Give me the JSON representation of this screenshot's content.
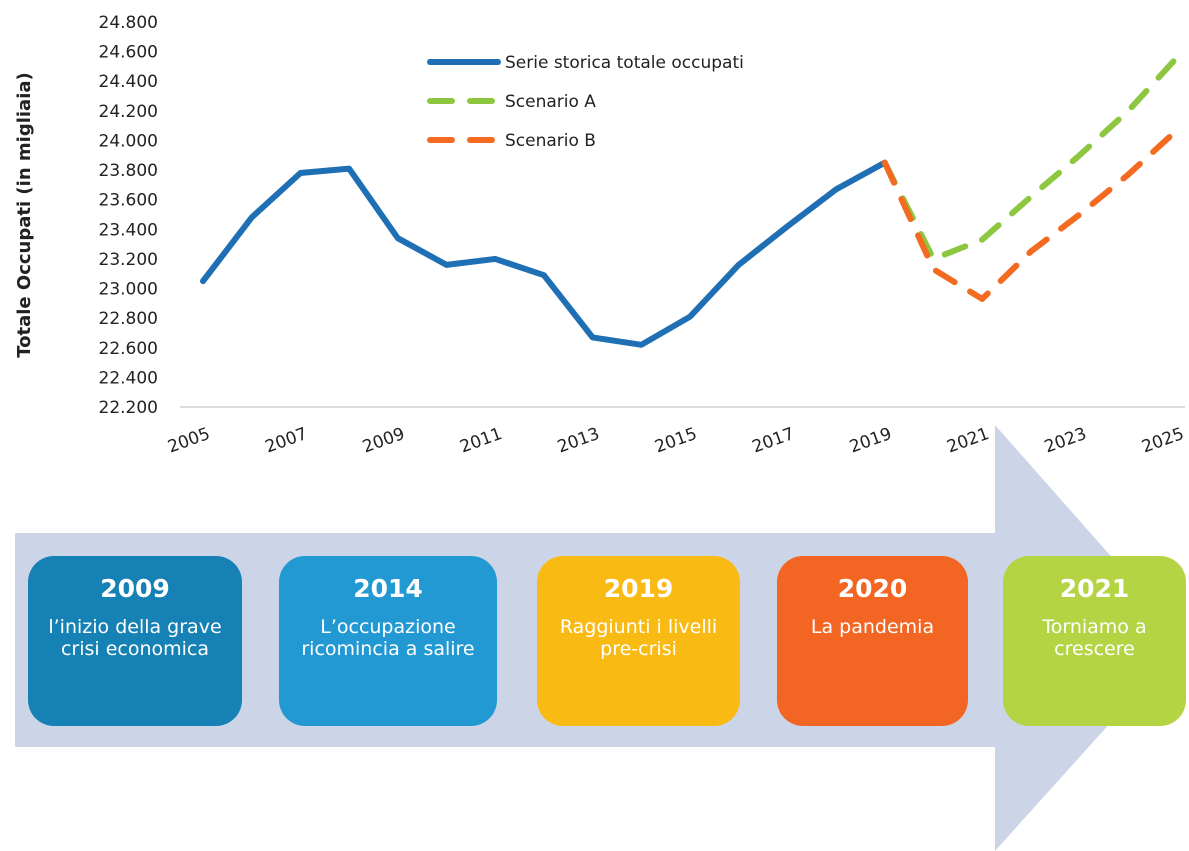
{
  "chart_data": {
    "type": "line",
    "y_label": "Totale Occupati (in migliaia)",
    "x": [
      2005,
      2006,
      2007,
      2008,
      2009,
      2010,
      2011,
      2012,
      2013,
      2014,
      2015,
      2016,
      2017,
      2018,
      2019,
      2020,
      2021,
      2022,
      2023,
      2024,
      2025
    ],
    "series": [
      {
        "name": "Serie storica totale occupati",
        "color": "#1f6fb5",
        "dashed": false,
        "values": [
          23050,
          23480,
          23780,
          23810,
          23340,
          23160,
          23200,
          23090,
          22670,
          22620,
          22810,
          23160,
          23420,
          23670,
          23850,
          null,
          null,
          null,
          null,
          null,
          null
        ]
      },
      {
        "name": "Scenario A",
        "color": "#8dc63f",
        "dashed": true,
        "values": [
          null,
          null,
          null,
          null,
          null,
          null,
          null,
          null,
          null,
          null,
          null,
          null,
          null,
          null,
          23850,
          23200,
          23330,
          23620,
          23900,
          24200,
          24560
        ]
      },
      {
        "name": "Scenario B",
        "color": "#f26b21",
        "dashed": true,
        "values": [
          null,
          null,
          null,
          null,
          null,
          null,
          null,
          null,
          null,
          null,
          null,
          null,
          null,
          null,
          23850,
          23130,
          22930,
          23250,
          23500,
          23770,
          24070
        ]
      }
    ],
    "xlim": [
      2005,
      2025
    ],
    "xticks": [
      2005,
      2007,
      2009,
      2011,
      2013,
      2015,
      2017,
      2019,
      2021,
      2023,
      2025
    ],
    "ylim": [
      22200,
      24800
    ],
    "yticks": [
      {
        "value": 22200,
        "label": "22.200"
      },
      {
        "value": 22400,
        "label": "22.400"
      },
      {
        "value": 22600,
        "label": "22.600"
      },
      {
        "value": 22800,
        "label": "22.800"
      },
      {
        "value": 23000,
        "label": "23.000"
      },
      {
        "value": 23200,
        "label": "23.200"
      },
      {
        "value": 23400,
        "label": "23.400"
      },
      {
        "value": 23600,
        "label": "23.600"
      },
      {
        "value": 23800,
        "label": "23.800"
      },
      {
        "value": 24000,
        "label": "24.000"
      },
      {
        "value": 24200,
        "label": "24.200"
      },
      {
        "value": 24400,
        "label": "24.400"
      },
      {
        "value": 24600,
        "label": "24.600"
      },
      {
        "value": 24800,
        "label": "24.800"
      }
    ],
    "grid": false,
    "legend": "upper center"
  },
  "timeline": [
    {
      "year": "2009",
      "text": "l’inizio della grave crisi economica",
      "color": "#1681b4"
    },
    {
      "year": "2014",
      "text": "L’occupazione ricomincia a salire",
      "color": "#2299d2"
    },
    {
      "year": "2019",
      "text": "Raggiunti i livelli pre-crisi",
      "color": "#f9ba14"
    },
    {
      "year": "2020",
      "text": "La pandemia",
      "color": "#f26522"
    },
    {
      "year": "2021",
      "text": "Torniamo a crescere",
      "color": "#b5d444"
    }
  ]
}
